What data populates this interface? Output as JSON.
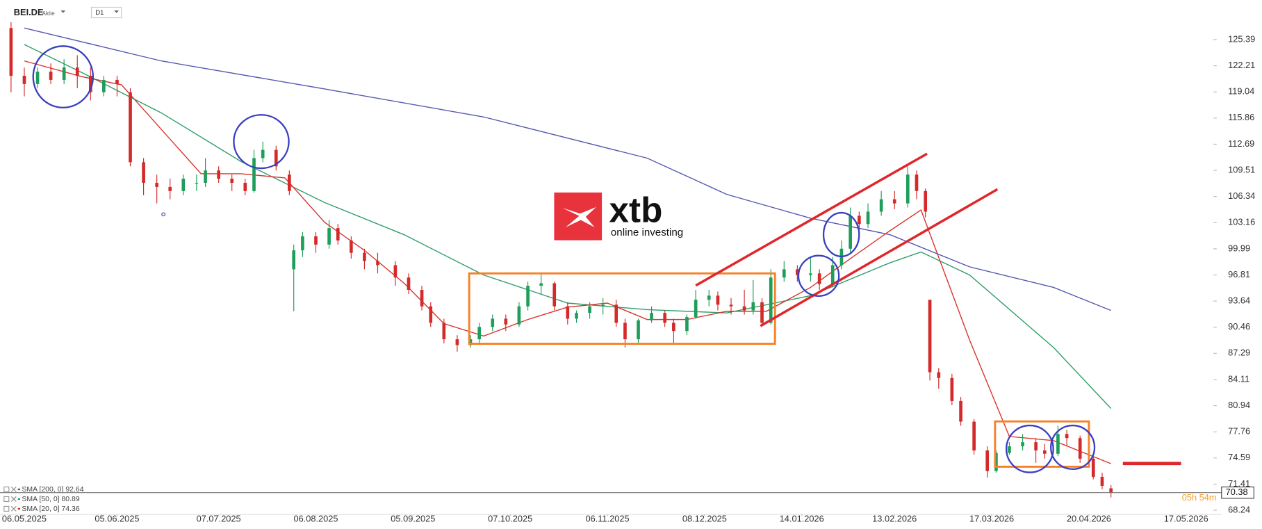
{
  "chart_data": {
    "type": "candlestick",
    "title": "BEI.DE",
    "instrument_type": "Aktie",
    "timeframe": "D1",
    "up_color": "#1e9e5a",
    "down_color": "#d42a2a",
    "x": [
      -3,
      0,
      3,
      6,
      9,
      12,
      15,
      18,
      21,
      24,
      27,
      30,
      33,
      36,
      39,
      41,
      44,
      47,
      50,
      52,
      54,
      57,
      60,
      61,
      63,
      66,
      69,
      71,
      74,
      77,
      80,
      84,
      87,
      90,
      92,
      95,
      98,
      101,
      103,
      106,
      109,
      112,
      114,
      117,
      120,
      123,
      125,
      128,
      131,
      134,
      136,
      139,
      142,
      145,
      147,
      150,
      152,
      155,
      157,
      160,
      163,
      165,
      167,
      169,
      172,
      175,
      178,
      180,
      183,
      185,
      187,
      189,
      191,
      194,
      197,
      200,
      202,
      204,
      205,
      207,
      210,
      212,
      215,
      218,
      220,
      223,
      226,
      229,
      231,
      234,
      236,
      239,
      242,
      244,
      246
    ],
    "open": [
      126.8,
      121,
      120,
      121.5,
      120.5,
      122,
      121,
      119,
      120.5,
      119,
      110.5,
      108,
      107.5,
      107,
      108,
      108,
      109.5,
      108.5,
      108,
      107,
      111,
      112,
      109,
      97.5,
      99.8,
      101.5,
      100.5,
      102.5,
      101,
      99.5,
      98.5,
      98,
      96.5,
      95,
      93,
      91,
      89,
      88.3,
      89,
      90.5,
      91.5,
      90.8,
      93,
      95.5,
      95.8,
      93,
      91.5,
      92.2,
      93,
      93.2,
      91,
      89,
      91.3,
      92.2,
      91,
      90,
      91.7,
      93.8,
      94.3,
      93.2,
      93,
      92.5,
      93.5,
      91,
      96.5,
      97.5,
      96.8,
      97,
      95.7,
      98,
      100,
      104,
      103,
      104.5,
      106,
      105.5,
      109,
      107,
      93.8,
      85,
      84.3,
      81.5,
      79,
      75.5,
      73,
      75.2,
      76,
      76.5,
      75.5,
      75.1,
      77.5,
      77,
      74.5,
      72.3,
      70.9
    ],
    "high": [
      127.5,
      122,
      122,
      122.5,
      123,
      123.5,
      122,
      121,
      121,
      119.5,
      111,
      109,
      108.5,
      109,
      109,
      111,
      110,
      109,
      108.5,
      112,
      113,
      112.5,
      109.5,
      100.5,
      102,
      102,
      103.5,
      103,
      101.5,
      100,
      99.5,
      98.5,
      97,
      95.5,
      93.5,
      91.5,
      89.5,
      89.5,
      91,
      92,
      92,
      93.5,
      96,
      97,
      96,
      93.5,
      92.5,
      93.5,
      94,
      93.8,
      91.5,
      91.5,
      93,
      92.5,
      91.5,
      92,
      95,
      95,
      94.8,
      94,
      95,
      96.2,
      94,
      97.5,
      98.5,
      98,
      99,
      97.5,
      99,
      101,
      105,
      104.5,
      105.5,
      107,
      107,
      110,
      109.5,
      107.3,
      93.8,
      85.5,
      84.8,
      82,
      79.3,
      76,
      75.5,
      76.5,
      77.5,
      77,
      76.3,
      78.5,
      78,
      77.3,
      74.8,
      72.8,
      71.3
    ],
    "low": [
      119,
      118.5,
      119.5,
      120,
      120,
      119.5,
      118,
      118.5,
      118.5,
      110,
      106.5,
      105.5,
      106,
      106.5,
      107,
      107.5,
      108,
      107,
      106.5,
      106.8,
      110.5,
      109.5,
      106.5,
      92.4,
      99,
      99.5,
      100,
      100.5,
      98.8,
      97.5,
      97,
      95.5,
      94.5,
      92.5,
      90.5,
      88.5,
      87.5,
      88,
      88.5,
      90,
      90,
      90.5,
      92.5,
      94.5,
      92.5,
      90.8,
      91,
      91.5,
      92,
      90.5,
      88,
      88.5,
      91,
      90.5,
      88.5,
      89.5,
      91.5,
      93,
      92.5,
      92,
      92,
      92,
      90.8,
      90.8,
      96,
      96,
      96,
      95,
      95.3,
      97.5,
      99.5,
      102,
      102.5,
      104,
      104.8,
      105,
      106,
      103.8,
      84,
      83,
      81,
      78.5,
      75,
      72.2,
      72.8,
      75,
      75.5,
      74,
      74.5,
      74.8,
      76,
      74,
      72,
      70.8,
      69.8
    ],
    "close": [
      121,
      120,
      121.5,
      120.5,
      122,
      121,
      119,
      120.5,
      120,
      110.5,
      108,
      107.5,
      107,
      108.5,
      108,
      109.5,
      108.5,
      108,
      107,
      111,
      112,
      110,
      107,
      99.8,
      101.5,
      100.5,
      102.5,
      101,
      99.5,
      98.5,
      98,
      96.5,
      95,
      93,
      91,
      89,
      88.3,
      89,
      90.5,
      91.5,
      90.8,
      93,
      95.5,
      95.8,
      93,
      91.5,
      92.2,
      93,
      93.2,
      91,
      89,
      91.3,
      92.2,
      91,
      90,
      91.7,
      93.8,
      94.3,
      93.2,
      93,
      92.5,
      93.5,
      91,
      96.5,
      97.5,
      96.8,
      97,
      95.7,
      98,
      100,
      104,
      103,
      104.5,
      106,
      105.5,
      109,
      107,
      104.5,
      85,
      84.3,
      81.5,
      79,
      75.5,
      73,
      75.2,
      76,
      76.5,
      75.5,
      75.1,
      77.5,
      77,
      74.5,
      72.3,
      71.2,
      70.38
    ],
    "series": [
      {
        "name": "SMA [200, 0]",
        "color": "#5558b0",
        "last_value": 92.64,
        "x": [
          0,
          31,
          68,
          104,
          141,
          159,
          178,
          196,
          214,
          233,
          246
        ],
        "values": [
          126.8,
          122.8,
          119.4,
          116,
          111,
          106.6,
          103.7,
          101.7,
          97.8,
          95.3,
          92.5
        ]
      },
      {
        "name": "SMA [50, 0]",
        "color": "#2e9e6a",
        "last_value": 80.89,
        "x": [
          0,
          13,
          31,
          49,
          68,
          86,
          104,
          123,
          141,
          159,
          178,
          196,
          203,
          214,
          233,
          246
        ],
        "values": [
          124.8,
          121.4,
          116.5,
          110.6,
          105.6,
          101.7,
          96.8,
          93.4,
          92.6,
          92.2,
          94.3,
          98.3,
          99.6,
          96.8,
          88,
          80.6
        ]
      },
      {
        "name": "SMA [20, 0]",
        "color": "#d9342b",
        "last_value": 74.36,
        "x": [
          0,
          13,
          22,
          31,
          40,
          49,
          59,
          68,
          77,
          86,
          95,
          104,
          114,
          123,
          132,
          141,
          150,
          159,
          168,
          178,
          187,
          196,
          203,
          214,
          223,
          233,
          246
        ],
        "values": [
          122.8,
          120.9,
          119.9,
          114.5,
          109.1,
          109.1,
          108.6,
          103.2,
          99.8,
          95.8,
          90.9,
          89.4,
          91.4,
          92.9,
          93.4,
          91.4,
          91.4,
          92.4,
          92.4,
          95.3,
          98.8,
          102.2,
          104.7,
          88.9,
          77.2,
          76.7,
          73.9
        ]
      }
    ],
    "last_price": 70.38,
    "countdown": "05h 54m",
    "xlim": [
      -5.5,
      269.2
    ],
    "ylim": [
      67.73,
      130.2
    ],
    "xticks": [
      {
        "value": 0,
        "label": "06.05.2025"
      },
      {
        "value": 21,
        "label": "05.06.2025"
      },
      {
        "value": 44,
        "label": "07.07.2025"
      },
      {
        "value": 66,
        "label": "06.08.2025"
      },
      {
        "value": 88,
        "label": "05.09.2025"
      },
      {
        "value": 110,
        "label": "07.10.2025"
      },
      {
        "value": 132,
        "label": "06.11.2025"
      },
      {
        "value": 154,
        "label": "08.12.2025"
      },
      {
        "value": 176,
        "label": "14.01.2026"
      },
      {
        "value": 197,
        "label": "13.02.2026"
      },
      {
        "value": 219,
        "label": "17.03.2026"
      },
      {
        "value": 241,
        "label": "20.04.2026"
      },
      {
        "value": 263,
        "label": "17.05.2026"
      }
    ],
    "yticks": [
      125.39,
      122.21,
      119.04,
      115.86,
      112.69,
      109.51,
      106.34,
      103.16,
      99.99,
      96.81,
      93.64,
      90.46,
      87.29,
      84.11,
      80.94,
      77.76,
      74.59,
      71.41,
      68.24
    ],
    "logo": {
      "brand": "xtb",
      "tagline": "online investing"
    }
  }
}
